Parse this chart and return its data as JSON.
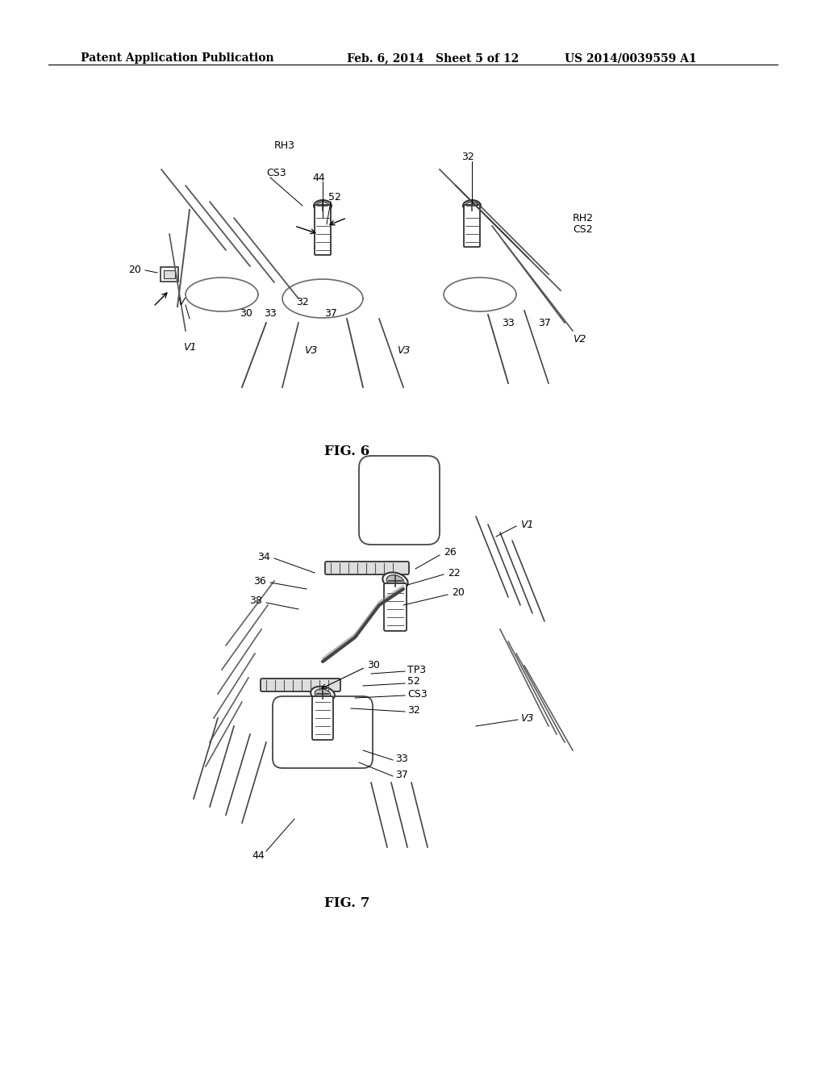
{
  "header_left": "Patent Application Publication",
  "header_mid": "Feb. 6, 2014   Sheet 5 of 12",
  "header_right": "US 2014/0039559 A1",
  "fig6_label": "FIG. 6",
  "fig7_label": "FIG. 7",
  "background_color": "#ffffff",
  "text_color": "#000000",
  "line_color": "#000000",
  "header_fontsize": 10,
  "label_fontsize": 9,
  "fig_label_fontsize": 12
}
